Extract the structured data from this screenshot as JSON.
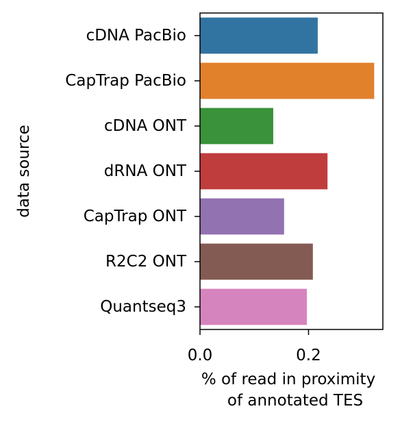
{
  "chart_data": {
    "type": "bar",
    "orientation": "horizontal",
    "title": "",
    "xlabel_lines": [
      "% of read in proximity",
      "of annotated TES"
    ],
    "ylabel": "data source",
    "categories": [
      "cDNA PacBio",
      "CapTrap PacBio",
      "cDNA ONT",
      "dRNA ONT",
      "CapTrap ONT",
      "R2C2 ONT",
      "Quantseq3"
    ],
    "values": [
      0.217,
      0.321,
      0.135,
      0.235,
      0.155,
      0.208,
      0.197
    ],
    "colors": [
      "#3274a1",
      "#e1812c",
      "#3a923a",
      "#c03d3e",
      "#9372b2",
      "#845b53",
      "#d684bd"
    ],
    "xlim": [
      0,
      0.337
    ],
    "xticks": [
      0.0,
      0.2
    ],
    "xtick_labels": [
      "0.0",
      "0.2"
    ],
    "grid": false,
    "legend": "none"
  }
}
